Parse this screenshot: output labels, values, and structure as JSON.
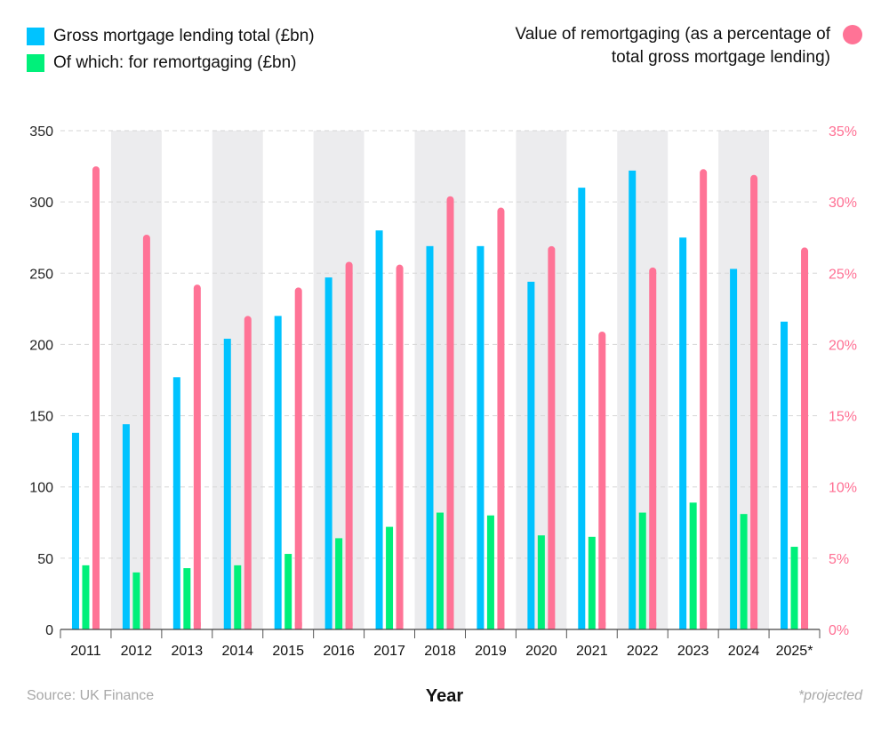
{
  "colors": {
    "total": "#00c3ff",
    "remortgage": "#00f07a",
    "percent": "#ff7396",
    "band": "#ececee",
    "grid": "#d6d6d6",
    "axis_left_text": "#222222",
    "axis_right_text": "#ff6f93"
  },
  "legend": {
    "total_label": "Gross mortgage lending total (£bn)",
    "remortgage_label": "Of which: for remortgaging (£bn)",
    "percent_label": "Value of remortgaging (as a percentage of total gross mortgage lending)"
  },
  "footer": {
    "source": "Source: UK Finance",
    "note": "*projected"
  },
  "chart_data": {
    "type": "bar",
    "xlabel": "Year",
    "categories": [
      "2011",
      "2012",
      "2013",
      "2014",
      "2015",
      "2016",
      "2017",
      "2018",
      "2019",
      "2020",
      "2021",
      "2022",
      "2023",
      "2024",
      "2025*"
    ],
    "series": [
      {
        "name": "Gross mortgage lending total (£bn)",
        "axis": "left",
        "values": [
          138,
          144,
          177,
          204,
          220,
          247,
          280,
          269,
          269,
          244,
          310,
          322,
          275,
          253,
          216
        ]
      },
      {
        "name": "Of which: for remortgaging (£bn)",
        "axis": "left",
        "values": [
          45,
          40,
          43,
          45,
          53,
          64,
          72,
          82,
          80,
          66,
          65,
          82,
          89,
          81,
          58
        ]
      },
      {
        "name": "Value of remortgaging (as a percentage of total gross mortgage lending)",
        "axis": "right",
        "values": [
          32.5,
          27.7,
          24.2,
          22.0,
          24.0,
          25.8,
          25.6,
          30.4,
          29.6,
          26.9,
          20.9,
          25.4,
          32.3,
          31.9,
          26.8
        ]
      }
    ],
    "ylim_left": [
      0,
      350
    ],
    "yticks_left": [
      "0",
      "50",
      "100",
      "150",
      "200",
      "250",
      "300",
      "350"
    ],
    "ylim_right": [
      0,
      35
    ],
    "yticks_right": [
      "0%",
      "5%",
      "10%",
      "15%",
      "20%",
      "25%",
      "30%",
      "35%"
    ],
    "grid": true
  }
}
